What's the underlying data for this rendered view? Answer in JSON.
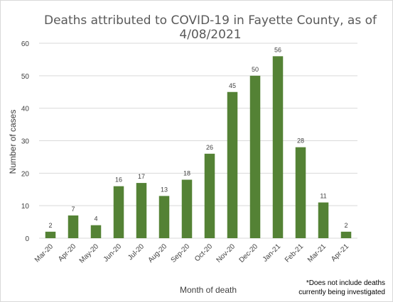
{
  "chart_data": {
    "type": "bar",
    "title_line1": "Deaths attributed to COVID-19 in Fayette County, as of",
    "title_line2": "4/08/2021",
    "xlabel": "Month of death",
    "ylabel": "Number of cases",
    "ylim": [
      0,
      60
    ],
    "yticks": [
      "0",
      "10",
      "20",
      "30",
      "40",
      "50",
      "60"
    ],
    "grid": true,
    "legend": "none",
    "categories": [
      "Mar-20",
      "Apr-20",
      "May-20",
      "Jun-20",
      "Jul-20",
      "Aug-20",
      "Sep-20",
      "Oct-20",
      "Nov-20",
      "Dec-20",
      "Jan-21",
      "Feb-21",
      "Mar-21",
      "Apr-21"
    ],
    "values": [
      2,
      7,
      4,
      16,
      17,
      13,
      18,
      26,
      45,
      50,
      56,
      28,
      11,
      2
    ],
    "bar_color": "#548235",
    "grid_color": "#d9d9d9",
    "footnote_line1": "*Does not include deaths",
    "footnote_line2": "currently being investigated"
  }
}
